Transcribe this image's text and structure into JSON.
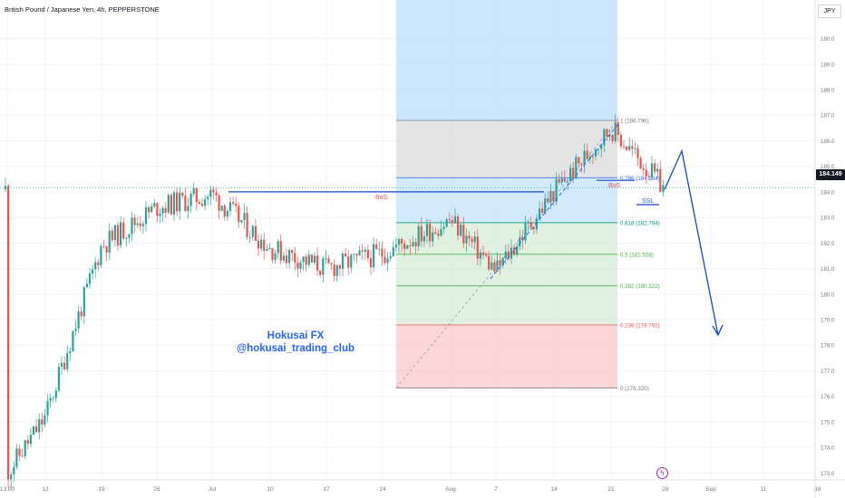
{
  "header": {
    "symbol_title": "British Pound / Japanese Yen, 4h, PEPPERSTONE",
    "currency": "JPY"
  },
  "watermark": {
    "line1": "Hokusai FX",
    "line2": "@hokusai_trading_club"
  },
  "current_price_label": "184.149",
  "colors": {
    "bull": "#26a69a",
    "bear": "#ef5350",
    "drawing": "#1848c8",
    "fib_top": "#bbdefb",
    "fib_grey": "#d6d6d6",
    "fib_green": "#c8e6c9",
    "fib_red": "#f8bbbb"
  },
  "chart_data": {
    "type": "candlestick",
    "title": "British Pound / Japanese Yen, 4h, PEPPERSTONE",
    "ylim": [
      172.8,
      190.8
    ],
    "y_ticks": [
      173.0,
      174.0,
      175.0,
      176.0,
      177.0,
      178.0,
      179.0,
      180.0,
      181.0,
      182.0,
      183.0,
      184.0,
      185.0,
      186.0,
      187.0,
      188.0,
      189.0,
      190.0
    ],
    "x_ticks": [
      "13:00",
      "12",
      "19",
      "26",
      "Jul",
      "10",
      "17",
      "24",
      "Aug",
      "7",
      "14",
      "21",
      "28",
      "Sep",
      "11",
      "18"
    ],
    "current_price": 184.149,
    "price_path": [
      {
        "x": "13:00",
        "price": 173.0
      },
      {
        "x": "12",
        "price": 175.2
      },
      {
        "x": "19",
        "price": 181.9
      },
      {
        "x": "26",
        "price": 183.4
      },
      {
        "x": "Jul",
        "price": 183.9
      },
      {
        "x": "10",
        "price": 181.8
      },
      {
        "x": "17",
        "price": 181.0
      },
      {
        "x": "24",
        "price": 181.6
      },
      {
        "x": "Aug",
        "price": 182.9
      },
      {
        "x": "7",
        "price": 180.9
      },
      {
        "x": "14",
        "price": 184.0
      },
      {
        "x": "21",
        "price": 186.5
      },
      {
        "x": "28",
        "price": 184.1
      }
    ],
    "fibonacci": [
      {
        "label": "1",
        "price_label": "(186.796)",
        "price": 186.796
      },
      {
        "label": "0.786",
        "price_label": "(184.554)",
        "price": 184.554
      },
      {
        "label": "0.618",
        "price_label": "(182.794)",
        "price": 182.794
      },
      {
        "label": "0.5",
        "price_label": "(181.558)",
        "price": 181.558
      },
      {
        "label": "0.382",
        "price_label": "(180.322)",
        "price": 180.322
      },
      {
        "label": "0.236",
        "price_label": "(178.792)",
        "price": 178.792
      },
      {
        "label": "0",
        "price_label": "(176.320)",
        "price": 176.32
      }
    ],
    "annotations": [
      {
        "text": "BoS",
        "price": 184.0
      },
      {
        "text": "BoS",
        "price": 184.45
      },
      {
        "text": "SSL",
        "price": 183.5
      }
    ],
    "projection": [
      {
        "x": "28",
        "price": 184.1
      },
      {
        "x": "Sep",
        "price": 185.6
      },
      {
        "x": "Sep",
        "price": 178.4
      }
    ]
  }
}
